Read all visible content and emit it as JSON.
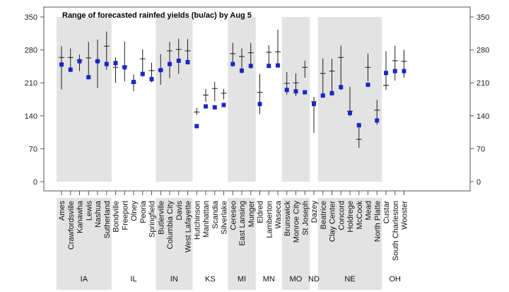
{
  "chart_data": {
    "type": "range-plot",
    "title": "Range of forecasted rainfed yields (bu/ac) by Aug 5",
    "ylim": [
      0,
      350
    ],
    "yticks": [
      0,
      70,
      140,
      210,
      280,
      350
    ],
    "colors": {
      "shade": "#e3e3e3",
      "marker": "#1a27c4",
      "whisker": "#1c1c1c",
      "axis": "#555555"
    },
    "states": [
      {
        "name": "IA",
        "shaded": true,
        "sites": [
          {
            "name": "Ames",
            "low": 196,
            "high": 288,
            "median": 264,
            "mark": 249
          },
          {
            "name": "Crawfordsville",
            "low": 233,
            "high": 283,
            "median": 264,
            "mark": 238
          },
          {
            "name": "Kanawha",
            "low": 235,
            "high": 270,
            "median": 258,
            "mark": 256
          },
          {
            "name": "Lewis",
            "low": 222,
            "high": 297,
            "median": 263,
            "mark": 222
          },
          {
            "name": "Nashua",
            "low": 199,
            "high": 302,
            "median": 256,
            "mark": 256
          },
          {
            "name": "Sutherland",
            "low": 238,
            "high": 319,
            "median": 288,
            "mark": 250
          }
        ]
      },
      {
        "name": "IL",
        "shaded": false,
        "sites": [
          {
            "name": "Bondville",
            "low": 210,
            "high": 264,
            "median": 243,
            "mark": 252
          },
          {
            "name": "Freeport",
            "low": 213,
            "high": 298,
            "median": 245,
            "mark": 243
          },
          {
            "name": "Olney",
            "low": 192,
            "high": 228,
            "median": 210,
            "mark": 212
          },
          {
            "name": "Peoria",
            "low": 223,
            "high": 281,
            "median": 261,
            "mark": 229
          },
          {
            "name": "Springfield",
            "low": 211,
            "high": 253,
            "median": 236,
            "mark": 218
          }
        ]
      },
      {
        "name": "IN",
        "shaded": true,
        "sites": [
          {
            "name": "Butlerville",
            "low": 206,
            "high": 271,
            "median": 237,
            "mark": 237
          },
          {
            "name": "Columbia City",
            "low": 220,
            "high": 297,
            "median": 278,
            "mark": 250
          },
          {
            "name": "Davis",
            "low": 229,
            "high": 304,
            "median": 281,
            "mark": 257
          },
          {
            "name": "West Lafayette",
            "low": 249,
            "high": 303,
            "median": 278,
            "mark": 254
          }
        ]
      },
      {
        "name": "KS",
        "shaded": false,
        "sites": [
          {
            "name": "Hutchinson",
            "low": 142,
            "high": 157,
            "median": 148,
            "mark": 118
          },
          {
            "name": "Manhattan",
            "low": 170,
            "high": 197,
            "median": 184,
            "mark": 160
          },
          {
            "name": "Scandia",
            "low": 171,
            "high": 212,
            "median": 198,
            "mark": 158
          },
          {
            "name": "Silverlake",
            "low": 175,
            "high": 197,
            "median": 188,
            "mark": 163
          }
        ]
      },
      {
        "name": "MI",
        "shaded": true,
        "sites": [
          {
            "name": "Cereseo",
            "low": 245,
            "high": 295,
            "median": 272,
            "mark": 250
          },
          {
            "name": "East Lansing",
            "low": 230,
            "high": 283,
            "median": 266,
            "mark": 236
          },
          {
            "name": "Munger",
            "low": 240,
            "high": 295,
            "median": 274,
            "mark": 246
          }
        ]
      },
      {
        "name": "MN",
        "shaded": false,
        "sites": [
          {
            "name": "Eldred",
            "low": 144,
            "high": 229,
            "median": 190,
            "mark": 165
          },
          {
            "name": "Lamberton",
            "low": 246,
            "high": 290,
            "median": 275,
            "mark": 246
          },
          {
            "name": "Waseca",
            "low": 249,
            "high": 323,
            "median": 276,
            "mark": 247
          }
        ]
      },
      {
        "name": "MO",
        "shaded": true,
        "sites": [
          {
            "name": "Brunswick",
            "low": 185,
            "high": 233,
            "median": 209,
            "mark": 195
          },
          {
            "name": "Monroe City",
            "low": 182,
            "high": 230,
            "median": 210,
            "mark": 192
          },
          {
            "name": "St Joseph",
            "low": 221,
            "high": 257,
            "median": 243,
            "mark": 190
          }
        ]
      },
      {
        "name": "ND",
        "shaded": false,
        "sites": [
          {
            "name": "Dazey",
            "low": 104,
            "high": 180,
            "median": 170,
            "mark": 165
          }
        ]
      },
      {
        "name": "NE",
        "shaded": true,
        "sites": [
          {
            "name": "Beatrice",
            "low": 183,
            "high": 262,
            "median": 230,
            "mark": 183
          },
          {
            "name": "Clay Center",
            "low": 183,
            "high": 261,
            "median": 235,
            "mark": 188
          },
          {
            "name": "Concord",
            "low": 195,
            "high": 289,
            "median": 264,
            "mark": 201
          },
          {
            "name": "Holdrege",
            "low": 139,
            "high": 202,
            "median": 150,
            "mark": 146
          },
          {
            "name": "McCook",
            "low": 72,
            "high": 125,
            "median": 90,
            "mark": 120
          },
          {
            "name": "Mead",
            "low": 213,
            "high": 272,
            "median": 243,
            "mark": 206
          },
          {
            "name": "North Platte",
            "low": 121,
            "high": 174,
            "median": 152,
            "mark": 130
          }
        ]
      },
      {
        "name": "OH",
        "shaded": false,
        "sites": [
          {
            "name": "Custar",
            "low": 195,
            "high": 277,
            "median": 205,
            "mark": 231
          },
          {
            "name": "South Charleston",
            "low": 215,
            "high": 289,
            "median": 257,
            "mark": 235
          },
          {
            "name": "Wooster",
            "low": 221,
            "high": 280,
            "median": 256,
            "mark": 235
          }
        ]
      }
    ]
  }
}
